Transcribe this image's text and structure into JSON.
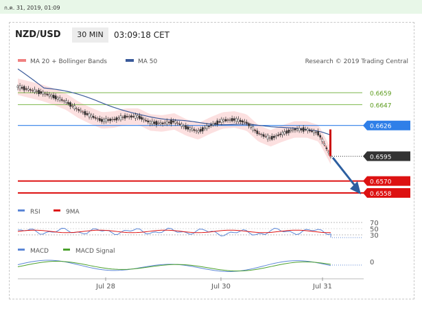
{
  "topbar": {
    "timestamp": "ก.ค. 31, 2019, 01:09"
  },
  "header": {
    "pair": "NZD/USD",
    "timeframe": "30 MIN",
    "time": "03:09:18 CET"
  },
  "legend": {
    "ma20": "MA 20 + Bollinger Bands",
    "ma50": "MA 50",
    "credit": "Research © 2019 Trading Central",
    "rsi": "RSI",
    "rsi_ma": "9MA",
    "macd": "MACD",
    "macd_signal": "MACD Signal"
  },
  "colors": {
    "ma20": "#f08080",
    "ma50": "#3a5a9a",
    "bands": "#fbd3d3",
    "resistance": "#7ab648",
    "pivot": "#2f7fe8",
    "support": "#dd1111",
    "arrow": "#2d5fa0",
    "candle": "#333333",
    "last": "#333333"
  },
  "chart_data": [
    {
      "type": "line",
      "title": "NZD/USD",
      "series": [
        {
          "name": "MA 20 + Bollinger Bands"
        },
        {
          "name": "MA 50"
        }
      ],
      "x_ticks": [
        "Jul 28",
        "Jul 30",
        "Jul 31"
      ],
      "levels": [
        {
          "label": "0.6659",
          "value": 0.6659,
          "kind": "resistance"
        },
        {
          "label": "0.6647",
          "value": 0.6647,
          "kind": "resistance"
        },
        {
          "label": "0.6626",
          "value": 0.6626,
          "kind": "pivot"
        },
        {
          "label": "0.6595",
          "value": 0.6595,
          "kind": "last"
        },
        {
          "label": "0.6570",
          "value": 0.657,
          "kind": "support"
        },
        {
          "label": "0.6558",
          "value": 0.6558,
          "kind": "support"
        }
      ],
      "price_path": [
        0.6665,
        0.6662,
        0.6659,
        0.6655,
        0.665,
        0.6642,
        0.6636,
        0.6631,
        0.6632,
        0.6635,
        0.6635,
        0.6629,
        0.6628,
        0.663,
        0.6624,
        0.662,
        0.6626,
        0.6631,
        0.6632,
        0.6629,
        0.6618,
        0.6613,
        0.6618,
        0.6622,
        0.6622,
        0.6618,
        0.6595
      ]
    },
    {
      "type": "line",
      "series": [
        {
          "name": "RSI"
        },
        {
          "name": "9MA"
        }
      ],
      "ticks": [
        "70",
        "50",
        "30"
      ],
      "ylim": [
        30,
        70
      ]
    },
    {
      "type": "line",
      "series": [
        {
          "name": "MACD"
        },
        {
          "name": "MACD Signal"
        }
      ],
      "ticks": [
        "0"
      ]
    }
  ]
}
